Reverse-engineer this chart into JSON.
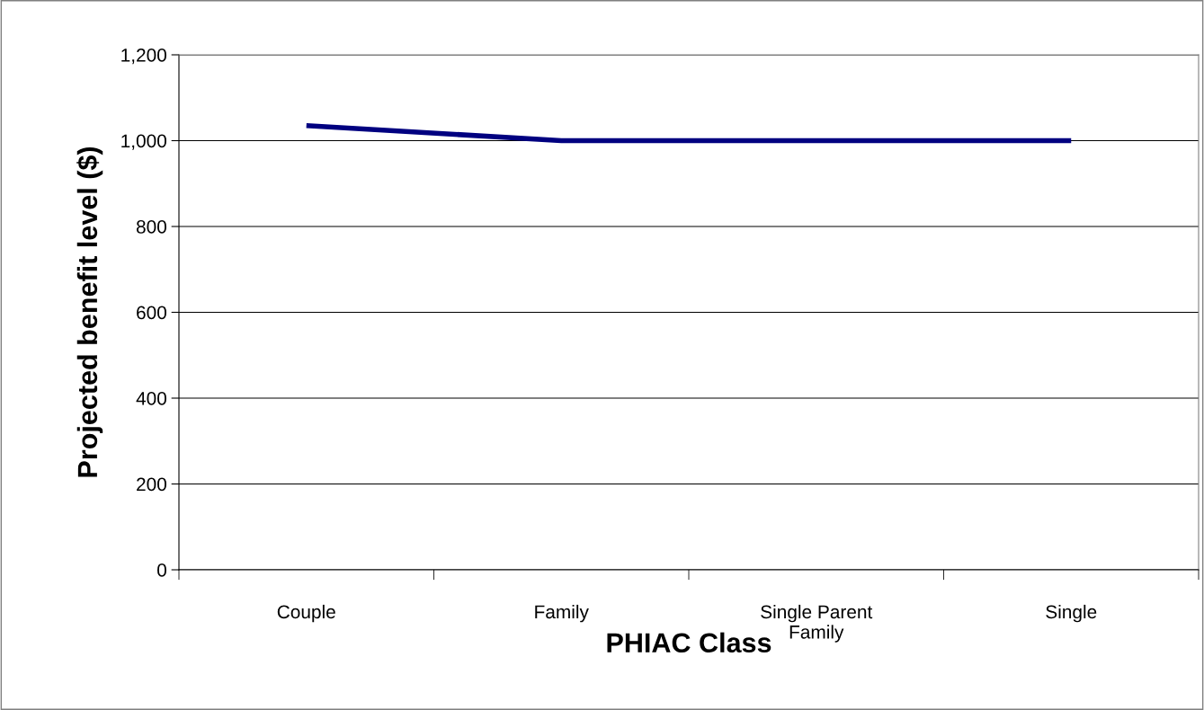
{
  "chart_data": {
    "type": "line",
    "xlabel": "PHIAC Class",
    "ylabel": "Projected benefit level ($)",
    "categories": [
      "Couple",
      "Family",
      "Single Parent Family",
      "Single"
    ],
    "series": [
      {
        "color": "#000080",
        "values": [
          1035,
          1000,
          1000,
          1000
        ]
      }
    ],
    "ylim": [
      0,
      1200
    ],
    "yticks": [
      {
        "value": 0,
        "label": "0"
      },
      {
        "value": 200,
        "label": "200"
      },
      {
        "value": 400,
        "label": "400"
      },
      {
        "value": 600,
        "label": "600"
      },
      {
        "value": 800,
        "label": "800"
      },
      {
        "value": 1000,
        "label": "1,000"
      },
      {
        "value": 1200,
        "label": "1,200"
      }
    ],
    "grid": "y",
    "marker": "none",
    "line_style": "solid"
  }
}
